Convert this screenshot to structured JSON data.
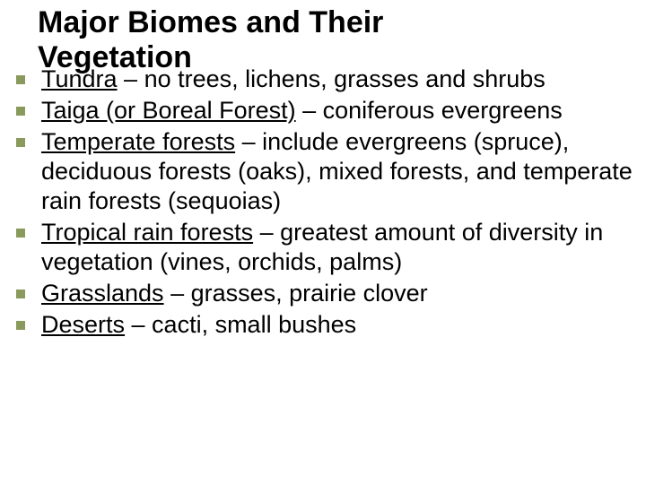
{
  "slide": {
    "title_line1": "Major Biomes and Their",
    "title_line2": "Vegetation",
    "title_fontsize": 34,
    "title_color": "#000000",
    "body_fontsize": 27,
    "body_color": "#000000",
    "bullet_color": "#8a995c",
    "bullet_size": 10,
    "background_color": "#ffffff",
    "items": [
      {
        "term": "Tundra",
        "desc": " – no trees, lichens, grasses and shrubs"
      },
      {
        "term": "Taiga (or Boreal Forest)",
        "desc": " – coniferous evergreens"
      },
      {
        "term": "Temperate forests",
        "desc": " – include evergreens (spruce), deciduous forests (oaks), mixed forests, and temperate rain forests (sequoias)"
      },
      {
        "term": "Tropical rain forests",
        "desc": " – greatest amount of diversity in vegetation (vines, orchids, palms)"
      },
      {
        "term": "Grasslands",
        "desc": " – grasses, prairie clover"
      },
      {
        "term": "Deserts",
        "desc": " – cacti, small bushes"
      }
    ]
  }
}
